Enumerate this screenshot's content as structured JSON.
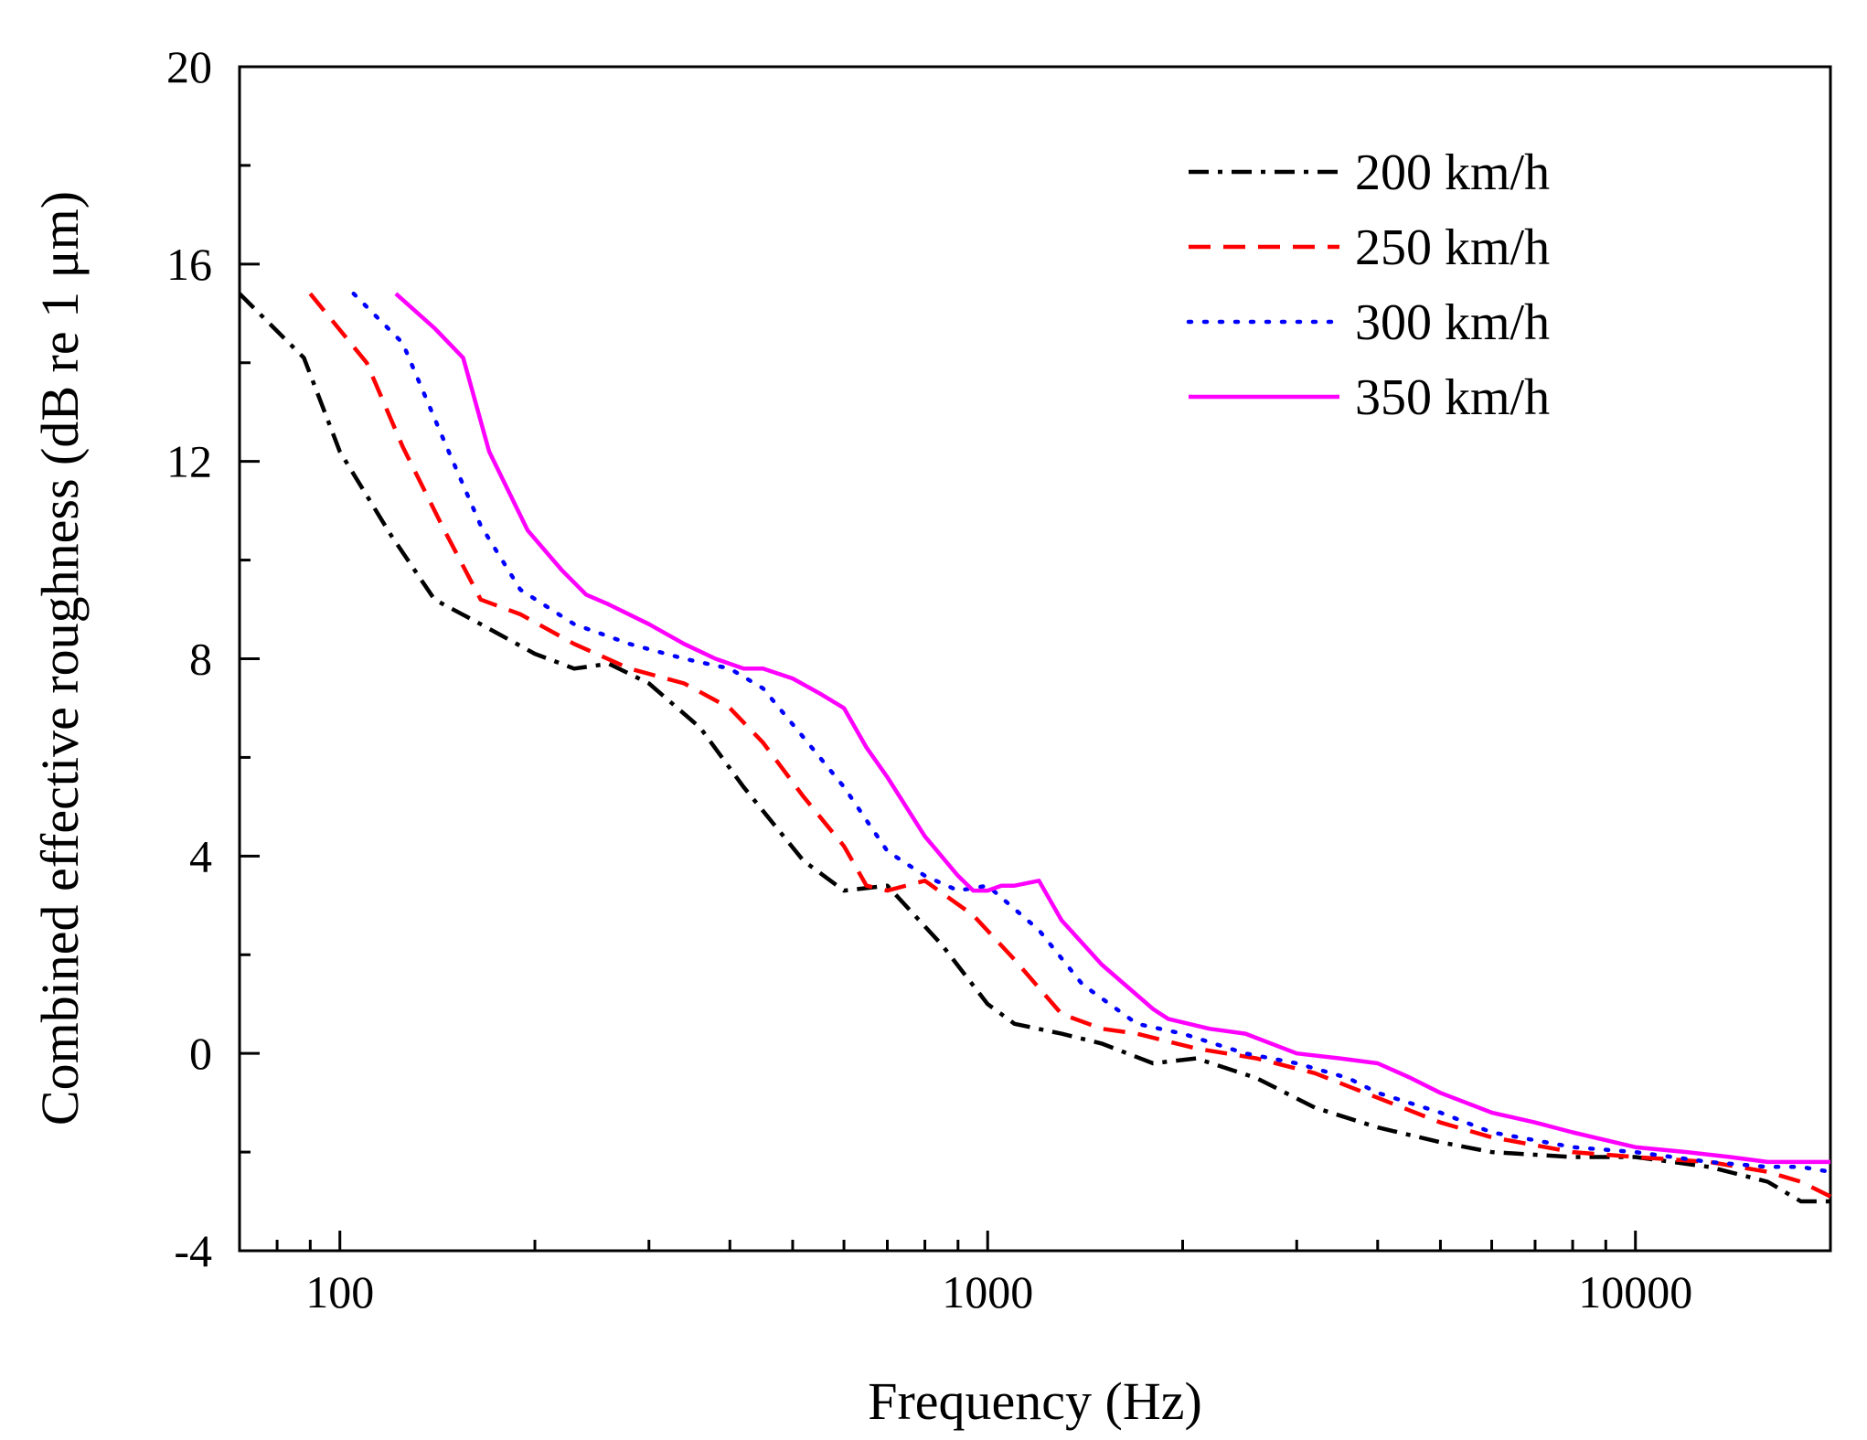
{
  "chart_data": {
    "type": "line",
    "xlabel": "Frequency (Hz)",
    "ylabel": "Combined effective roughness (dB re 1 μm)",
    "xscale": "log",
    "xlim": [
      70,
      20000
    ],
    "ylim": [
      -4,
      20
    ],
    "x_ticks": [
      100,
      1000,
      10000
    ],
    "x_tick_labels": [
      "100",
      "1000",
      "10000"
    ],
    "y_ticks": [
      -4,
      0,
      4,
      8,
      12,
      16,
      20
    ],
    "y_tick_labels": [
      "-4",
      "0",
      "4",
      "8",
      "12",
      "16",
      "20"
    ],
    "legend_position": "top-right",
    "series": [
      {
        "name": "200 km/h",
        "color": "#000000",
        "style": "dash-dot",
        "x": [
          70,
          88,
          100,
          120,
          140,
          165,
          200,
          230,
          260,
          300,
          360,
          420,
          520,
          600,
          700,
          850,
          1000,
          1100,
          1300,
          1500,
          1800,
          2100,
          2600,
          3200,
          4000,
          5000,
          6000,
          8000,
          10000,
          13000,
          16000,
          18000,
          20000
        ],
        "y": [
          15.4,
          14.1,
          12.2,
          10.5,
          9.2,
          8.7,
          8.1,
          7.8,
          7.9,
          7.5,
          6.6,
          5.4,
          3.9,
          3.3,
          3.4,
          2.2,
          1.0,
          0.6,
          0.4,
          0.2,
          -0.2,
          -0.1,
          -0.5,
          -1.1,
          -1.5,
          -1.8,
          -2.0,
          -2.1,
          -2.1,
          -2.3,
          -2.6,
          -3.0,
          -3.0
        ]
      },
      {
        "name": "250 km/h",
        "color": "#ff0000",
        "style": "dashed",
        "x": [
          90,
          110,
          125,
          145,
          165,
          190,
          230,
          280,
          340,
          400,
          450,
          520,
          600,
          650,
          700,
          800,
          950,
          1100,
          1300,
          1500,
          1700,
          2100,
          2600,
          3200,
          4000,
          5000,
          6000,
          8000,
          10000,
          13000,
          16000,
          18000,
          20000
        ],
        "y": [
          15.4,
          14.0,
          12.3,
          10.6,
          9.2,
          8.9,
          8.3,
          7.8,
          7.5,
          7.0,
          6.3,
          5.2,
          4.2,
          3.4,
          3.3,
          3.5,
          2.8,
          1.9,
          0.8,
          0.5,
          0.4,
          0.1,
          -0.1,
          -0.4,
          -0.9,
          -1.4,
          -1.7,
          -2.0,
          -2.1,
          -2.2,
          -2.4,
          -2.6,
          -2.9
        ]
      },
      {
        "name": "300 km/h",
        "color": "#0000ff",
        "style": "dotted",
        "x": [
          105,
          125,
          145,
          165,
          190,
          230,
          280,
          340,
          400,
          450,
          520,
          600,
          700,
          800,
          900,
          1000,
          1200,
          1400,
          1700,
          2000,
          2500,
          3000,
          3600,
          4000,
          5000,
          6000,
          8000,
          10000,
          13000,
          16000,
          18000,
          20000
        ],
        "y": [
          15.4,
          14.4,
          12.4,
          10.7,
          9.4,
          8.7,
          8.3,
          8.0,
          7.8,
          7.4,
          6.4,
          5.4,
          4.1,
          3.6,
          3.3,
          3.4,
          2.5,
          1.4,
          0.6,
          0.4,
          0.0,
          -0.2,
          -0.5,
          -0.8,
          -1.2,
          -1.6,
          -1.9,
          -2.0,
          -2.2,
          -2.3,
          -2.3,
          -2.4
        ]
      },
      {
        "name": "350 km/h",
        "color": "#ff00ff",
        "style": "solid",
        "x": [
          122,
          140,
          155,
          170,
          195,
          220,
          240,
          260,
          300,
          340,
          380,
          420,
          450,
          500,
          550,
          600,
          650,
          700,
          800,
          900,
          950,
          1000,
          1050,
          1100,
          1200,
          1300,
          1500,
          1800,
          1900,
          2200,
          2500,
          3000,
          3500,
          4000,
          4500,
          5000,
          6000,
          7000,
          8000,
          10000,
          12000,
          14000,
          16000,
          18000,
          20000
        ],
        "y": [
          15.4,
          14.7,
          14.1,
          12.2,
          10.6,
          9.8,
          9.3,
          9.1,
          8.7,
          8.3,
          8.0,
          7.8,
          7.8,
          7.6,
          7.3,
          7.0,
          6.2,
          5.6,
          4.4,
          3.6,
          3.3,
          3.3,
          3.4,
          3.4,
          3.5,
          2.7,
          1.8,
          0.9,
          0.7,
          0.5,
          0.4,
          0.0,
          -0.1,
          -0.2,
          -0.5,
          -0.8,
          -1.2,
          -1.4,
          -1.6,
          -1.9,
          -2.0,
          -2.1,
          -2.2,
          -2.2,
          -2.2
        ]
      }
    ]
  }
}
